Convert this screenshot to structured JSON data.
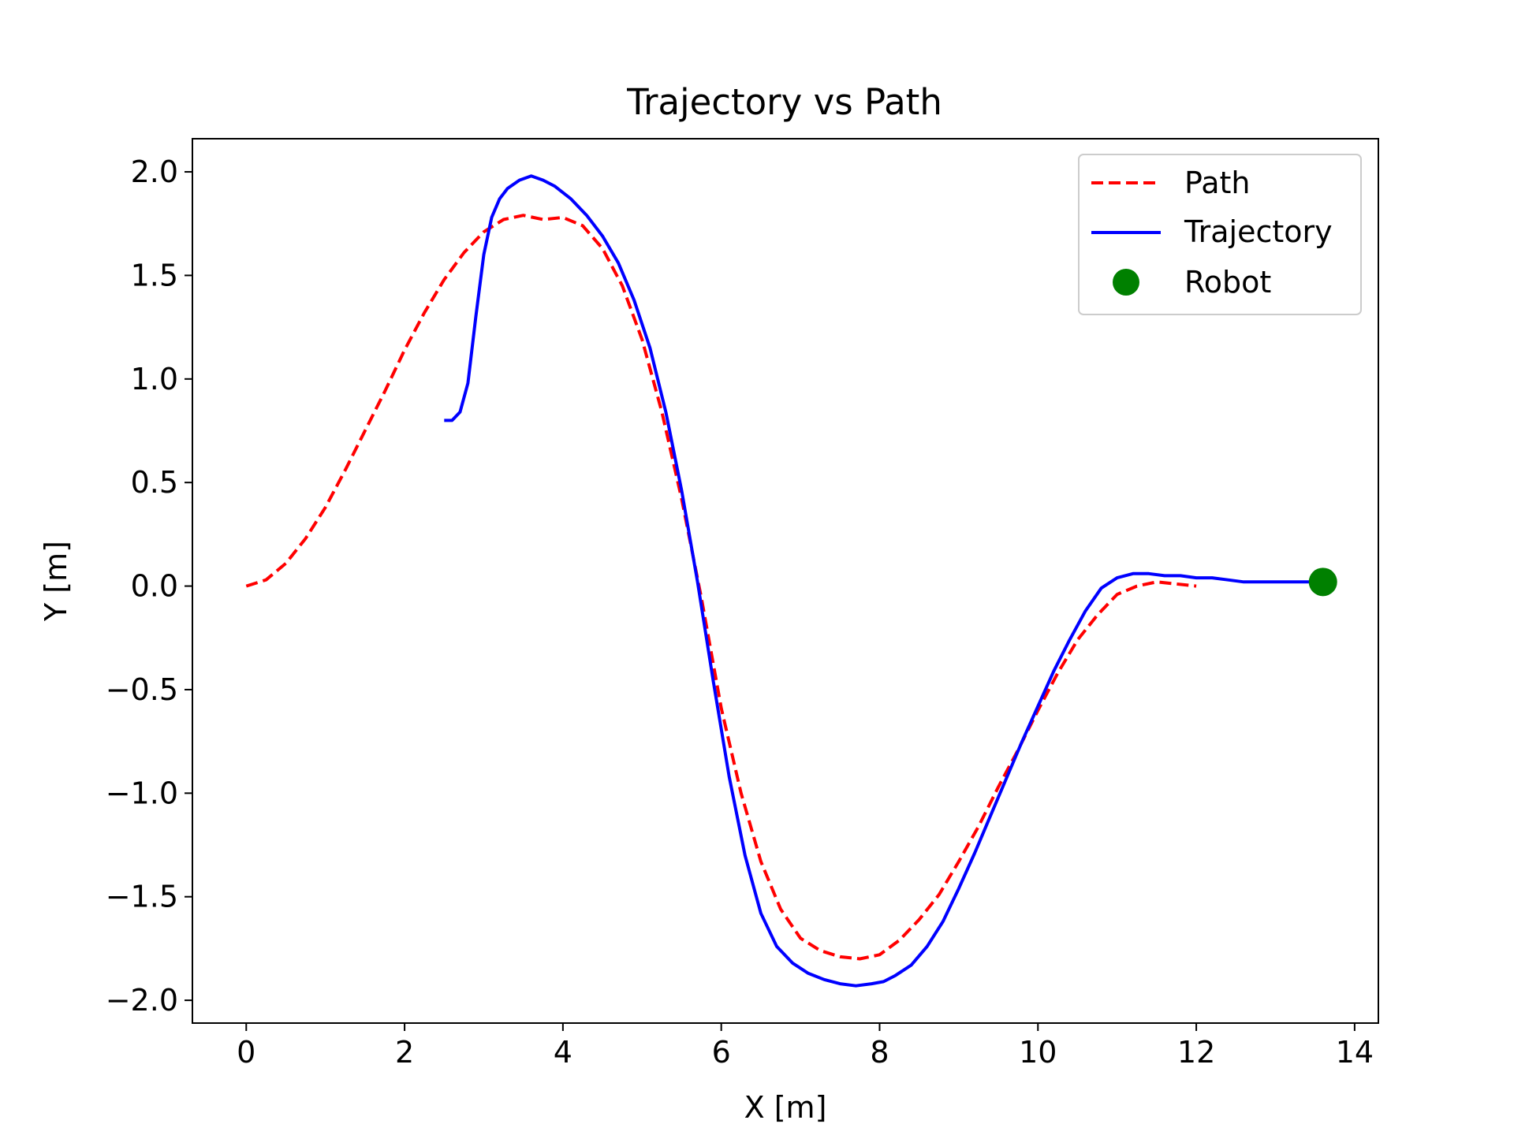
{
  "chart_data": {
    "type": "line",
    "title": "Trajectory vs Path",
    "xlabel": "X [m]",
    "ylabel": "Y [m]",
    "xlim": [
      -0.68,
      14.3
    ],
    "ylim": [
      -2.11,
      2.16
    ],
    "grid": false,
    "legend_position": "upper right",
    "x_ticks": [
      0,
      2,
      4,
      6,
      8,
      10,
      12,
      14
    ],
    "x_tick_labels": [
      "0",
      "2",
      "4",
      "6",
      "8",
      "10",
      "12",
      "14"
    ],
    "y_ticks": [
      2.0,
      1.5,
      1.0,
      0.5,
      0.0,
      -0.5,
      -1.0,
      -1.5,
      -2.0
    ],
    "y_tick_labels": [
      "2.0",
      "1.5",
      "1.0",
      "0.5",
      "0.0",
      "−0.5",
      "−1.0",
      "−1.5",
      "−2.0"
    ],
    "series": [
      {
        "name": "Path",
        "style": "dashed",
        "color": "#ff0000",
        "x": [
          0,
          0.25,
          0.5,
          0.75,
          1,
          1.25,
          1.5,
          1.75,
          2,
          2.25,
          2.5,
          2.75,
          3,
          3.25,
          3.5,
          3.75,
          4,
          4.25,
          4.5,
          4.75,
          5,
          5.25,
          5.5,
          5.75,
          6,
          6.25,
          6.5,
          6.75,
          7,
          7.25,
          7.5,
          7.75,
          8,
          8.25,
          8.5,
          8.75,
          9,
          9.25,
          9.5,
          9.75,
          10,
          10.25,
          10.5,
          10.75,
          11,
          11.25,
          11.5,
          11.75,
          12
        ],
        "y": [
          0.0,
          0.03,
          0.11,
          0.23,
          0.38,
          0.56,
          0.75,
          0.94,
          1.14,
          1.32,
          1.48,
          1.61,
          1.71,
          1.77,
          1.79,
          1.77,
          1.78,
          1.74,
          1.63,
          1.45,
          1.19,
          0.84,
          0.42,
          -0.06,
          -0.59,
          -1.0,
          -1.33,
          -1.56,
          -1.7,
          -1.76,
          -1.79,
          -1.8,
          -1.78,
          -1.71,
          -1.61,
          -1.49,
          -1.33,
          -1.16,
          -0.97,
          -0.79,
          -0.6,
          -0.42,
          -0.26,
          -0.14,
          -0.04,
          0.0,
          0.02,
          0.01,
          0.0
        ]
      },
      {
        "name": "Trajectory",
        "style": "solid",
        "color": "#0000ff",
        "x": [
          2.5,
          2.6,
          2.7,
          2.8,
          2.9,
          3.0,
          3.1,
          3.2,
          3.3,
          3.45,
          3.6,
          3.75,
          3.9,
          4.1,
          4.3,
          4.5,
          4.7,
          4.9,
          5.1,
          5.3,
          5.5,
          5.7,
          5.9,
          6.1,
          6.3,
          6.5,
          6.7,
          6.9,
          7.1,
          7.3,
          7.5,
          7.7,
          7.9,
          8.05,
          8.2,
          8.4,
          8.6,
          8.8,
          9.0,
          9.2,
          9.4,
          9.6,
          9.8,
          10.0,
          10.2,
          10.4,
          10.6,
          10.8,
          11.0,
          11.2,
          11.4,
          11.6,
          11.8,
          12.0,
          12.2,
          12.4,
          12.6,
          12.8,
          13.0,
          13.2,
          13.4,
          13.6
        ],
        "y": [
          0.8,
          0.8,
          0.84,
          0.98,
          1.3,
          1.6,
          1.78,
          1.87,
          1.92,
          1.96,
          1.98,
          1.96,
          1.93,
          1.87,
          1.79,
          1.69,
          1.56,
          1.38,
          1.15,
          0.84,
          0.46,
          0.02,
          -0.46,
          -0.92,
          -1.3,
          -1.58,
          -1.74,
          -1.82,
          -1.87,
          -1.9,
          -1.92,
          -1.93,
          -1.92,
          -1.91,
          -1.88,
          -1.83,
          -1.74,
          -1.62,
          -1.46,
          -1.29,
          -1.11,
          -0.93,
          -0.75,
          -0.58,
          -0.41,
          -0.26,
          -0.12,
          -0.01,
          0.04,
          0.06,
          0.06,
          0.05,
          0.05,
          0.04,
          0.04,
          0.03,
          0.02,
          0.02,
          0.02,
          0.02,
          0.02,
          0.02
        ]
      },
      {
        "name": "Robot",
        "style": "marker",
        "color": "#008000",
        "x": [
          13.6
        ],
        "y": [
          0.02
        ]
      }
    ]
  }
}
